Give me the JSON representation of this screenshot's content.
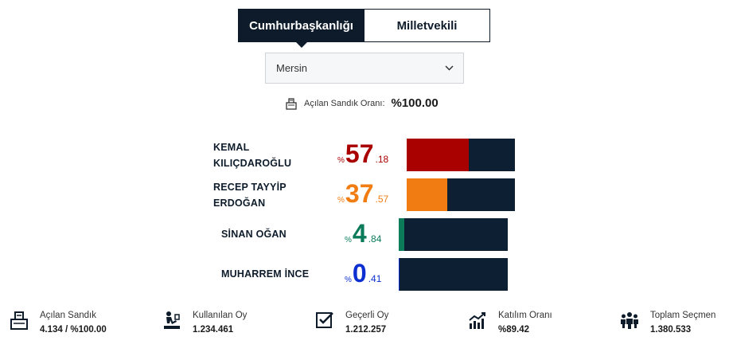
{
  "tabs": [
    {
      "label": "Cumhurbaşkanlığı",
      "active": true
    },
    {
      "label": "Milletvekili",
      "active": false
    }
  ],
  "province_select": {
    "value": "Mersin"
  },
  "ballot_ratio": {
    "label": "Açılan Sandık Oranı:",
    "value": "%100.00"
  },
  "candidates": [
    {
      "name_line1": "KEMAL",
      "name_line2": "KILIÇDAROĞLU",
      "pct_symbol": "%",
      "pct_int": "57",
      "pct_dec": ".18",
      "share": 57.18,
      "color": "#a90000"
    },
    {
      "name_line1": "RECEP TAYYİP",
      "name_line2": "ERDOĞAN",
      "pct_symbol": "%",
      "pct_int": "37",
      "pct_dec": ".57",
      "share": 37.57,
      "color": "#f07c12"
    },
    {
      "name_line1": "SİNAN OĞAN",
      "name_line2": "",
      "pct_symbol": "%",
      "pct_int": "4",
      "pct_dec": ".84",
      "share": 4.84,
      "color": "#0b7b5a"
    },
    {
      "name_line1": "MUHARREM İNCE",
      "name_line2": "",
      "pct_symbol": "%",
      "pct_int": "0",
      "pct_dec": ".41",
      "share": 0.41,
      "color": "#0b2fd1"
    }
  ],
  "stats": [
    {
      "icon": "ballot-box-icon",
      "label": "Açılan Sandık",
      "value": "4.134 / %100.00"
    },
    {
      "icon": "voter-icon",
      "label": "Kullanılan Oy",
      "value": "1.234.461"
    },
    {
      "icon": "checkbox-icon",
      "label": "Geçerli Oy",
      "value": "1.212.257"
    },
    {
      "icon": "growth-chart-icon",
      "label": "Katılım Oranı",
      "value": "%89.42"
    },
    {
      "icon": "people-group-icon",
      "label": "Toplam Seçmen",
      "value": "1.380.533"
    }
  ],
  "colors": {
    "navy": "#0d1b2a",
    "bar_bg": "#0d1f33"
  }
}
